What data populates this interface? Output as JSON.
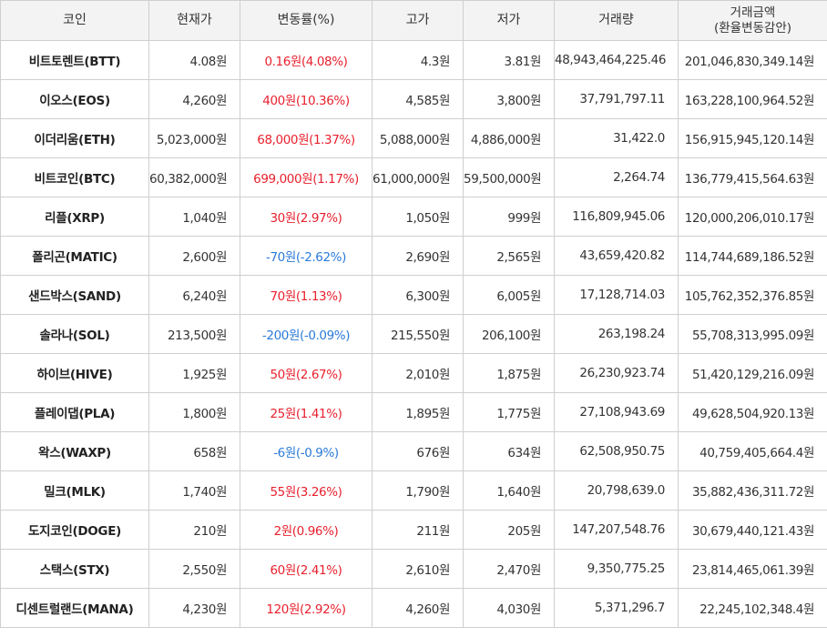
{
  "colors": {
    "up": "#e8212e",
    "down": "#2b7ad8",
    "header_bg": "#f3f3f3",
    "border": "#cfcfcf"
  },
  "headers": {
    "coin": "코인",
    "price": "현재가",
    "change": "변동률(%)",
    "high": "고가",
    "low": "저가",
    "volume": "거래량",
    "amount_line1": "거래금액",
    "amount_line2": "(환율변동감안)"
  },
  "rows": [
    {
      "name": "비트토렌트(BTT)",
      "price": "4.08원",
      "change": "0.16원(4.08%)",
      "direction": "up",
      "high": "4.3원",
      "low": "3.81원",
      "volume": "48,943,464,225.46",
      "amount": "201,046,830,349.14원"
    },
    {
      "name": "이오스(EOS)",
      "price": "4,260원",
      "change": "400원(10.36%)",
      "direction": "up",
      "high": "4,585원",
      "low": "3,800원",
      "volume": "37,791,797.11",
      "amount": "163,228,100,964.52원"
    },
    {
      "name": "이더리움(ETH)",
      "price": "5,023,000원",
      "change": "68,000원(1.37%)",
      "direction": "up",
      "high": "5,088,000원",
      "low": "4,886,000원",
      "volume": "31,422.0",
      "amount": "156,915,945,120.14원"
    },
    {
      "name": "비트코인(BTC)",
      "price": "60,382,000원",
      "change": "699,000원(1.17%)",
      "direction": "up",
      "high": "61,000,000원",
      "low": "59,500,000원",
      "volume": "2,264.74",
      "amount": "136,779,415,564.63원"
    },
    {
      "name": "리플(XRP)",
      "price": "1,040원",
      "change": "30원(2.97%)",
      "direction": "up",
      "high": "1,050원",
      "low": "999원",
      "volume": "116,809,945.06",
      "amount": "120,000,206,010.17원"
    },
    {
      "name": "폴리곤(MATIC)",
      "price": "2,600원",
      "change": "-70원(-2.62%)",
      "direction": "down",
      "high": "2,690원",
      "low": "2,565원",
      "volume": "43,659,420.82",
      "amount": "114,744,689,186.52원"
    },
    {
      "name": "샌드박스(SAND)",
      "price": "6,240원",
      "change": "70원(1.13%)",
      "direction": "up",
      "high": "6,300원",
      "low": "6,005원",
      "volume": "17,128,714.03",
      "amount": "105,762,352,376.85원"
    },
    {
      "name": "솔라나(SOL)",
      "price": "213,500원",
      "change": "-200원(-0.09%)",
      "direction": "down",
      "high": "215,550원",
      "low": "206,100원",
      "volume": "263,198.24",
      "amount": "55,708,313,995.09원"
    },
    {
      "name": "하이브(HIVE)",
      "price": "1,925원",
      "change": "50원(2.67%)",
      "direction": "up",
      "high": "2,010원",
      "low": "1,875원",
      "volume": "26,230,923.74",
      "amount": "51,420,129,216.09원"
    },
    {
      "name": "플레이댑(PLA)",
      "price": "1,800원",
      "change": "25원(1.41%)",
      "direction": "up",
      "high": "1,895원",
      "low": "1,775원",
      "volume": "27,108,943.69",
      "amount": "49,628,504,920.13원"
    },
    {
      "name": "왁스(WAXP)",
      "price": "658원",
      "change": "-6원(-0.9%)",
      "direction": "down",
      "high": "676원",
      "low": "634원",
      "volume": "62,508,950.75",
      "amount": "40,759,405,664.4원"
    },
    {
      "name": "밀크(MLK)",
      "price": "1,740원",
      "change": "55원(3.26%)",
      "direction": "up",
      "high": "1,790원",
      "low": "1,640원",
      "volume": "20,798,639.0",
      "amount": "35,882,436,311.72원"
    },
    {
      "name": "도지코인(DOGE)",
      "price": "210원",
      "change": "2원(0.96%)",
      "direction": "up",
      "high": "211원",
      "low": "205원",
      "volume": "147,207,548.76",
      "amount": "30,679,440,121.43원"
    },
    {
      "name": "스택스(STX)",
      "price": "2,550원",
      "change": "60원(2.41%)",
      "direction": "up",
      "high": "2,610원",
      "low": "2,470원",
      "volume": "9,350,775.25",
      "amount": "23,814,465,061.39원"
    },
    {
      "name": "디센트럴랜드(MANA)",
      "price": "4,230원",
      "change": "120원(2.92%)",
      "direction": "up",
      "high": "4,260원",
      "low": "4,030원",
      "volume": "5,371,296.7",
      "amount": "22,245,102,348.4원"
    }
  ]
}
